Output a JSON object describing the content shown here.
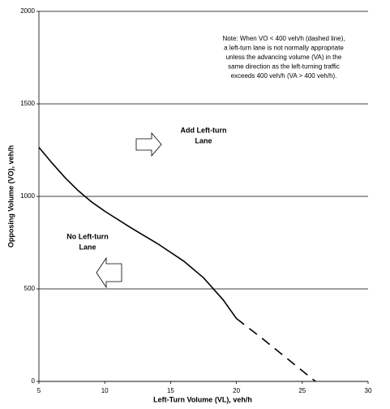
{
  "chart_data": {
    "type": "line",
    "x_label": "Left-Turn Volume (VL), veh/h",
    "y_label": "Opposing Volume (VO), veh/h",
    "xlim": [
      5,
      30
    ],
    "xticks": [
      5,
      10,
      15,
      20,
      25,
      30
    ],
    "ylim": [
      0,
      2000
    ],
    "yticks": [
      0,
      500,
      1000,
      1500,
      2000
    ],
    "grid": true,
    "series": [
      {
        "color": "#000000",
        "style": "solid",
        "x": [
          5,
          6,
          7,
          8,
          9,
          10,
          12,
          14,
          16,
          17.5,
          19,
          20
        ],
        "values": [
          1265,
          1180,
          1100,
          1030,
          970,
          920,
          830,
          745,
          650,
          560,
          440,
          340
        ]
      },
      {
        "color": "#000000",
        "style": "dashed",
        "x": [
          20,
          22,
          24,
          26
        ],
        "values": [
          340,
          230,
          115,
          0
        ]
      }
    ],
    "annotations": [
      {
        "lines": [
          "Note:  When VO < 400 veh/h (dashed line),",
          "a left-turn lane is not normally appropriate",
          "unless the advancing volume (VA) in the",
          "same direction as the left-turning traffic",
          "exceeds 400 veh/h (VA > 400 veh/h)."
        ]
      },
      {
        "lines": [
          "Add Left-turn",
          "Lane"
        ]
      },
      {
        "lines": [
          "No Left-turn",
          "Lane"
        ]
      }
    ]
  }
}
